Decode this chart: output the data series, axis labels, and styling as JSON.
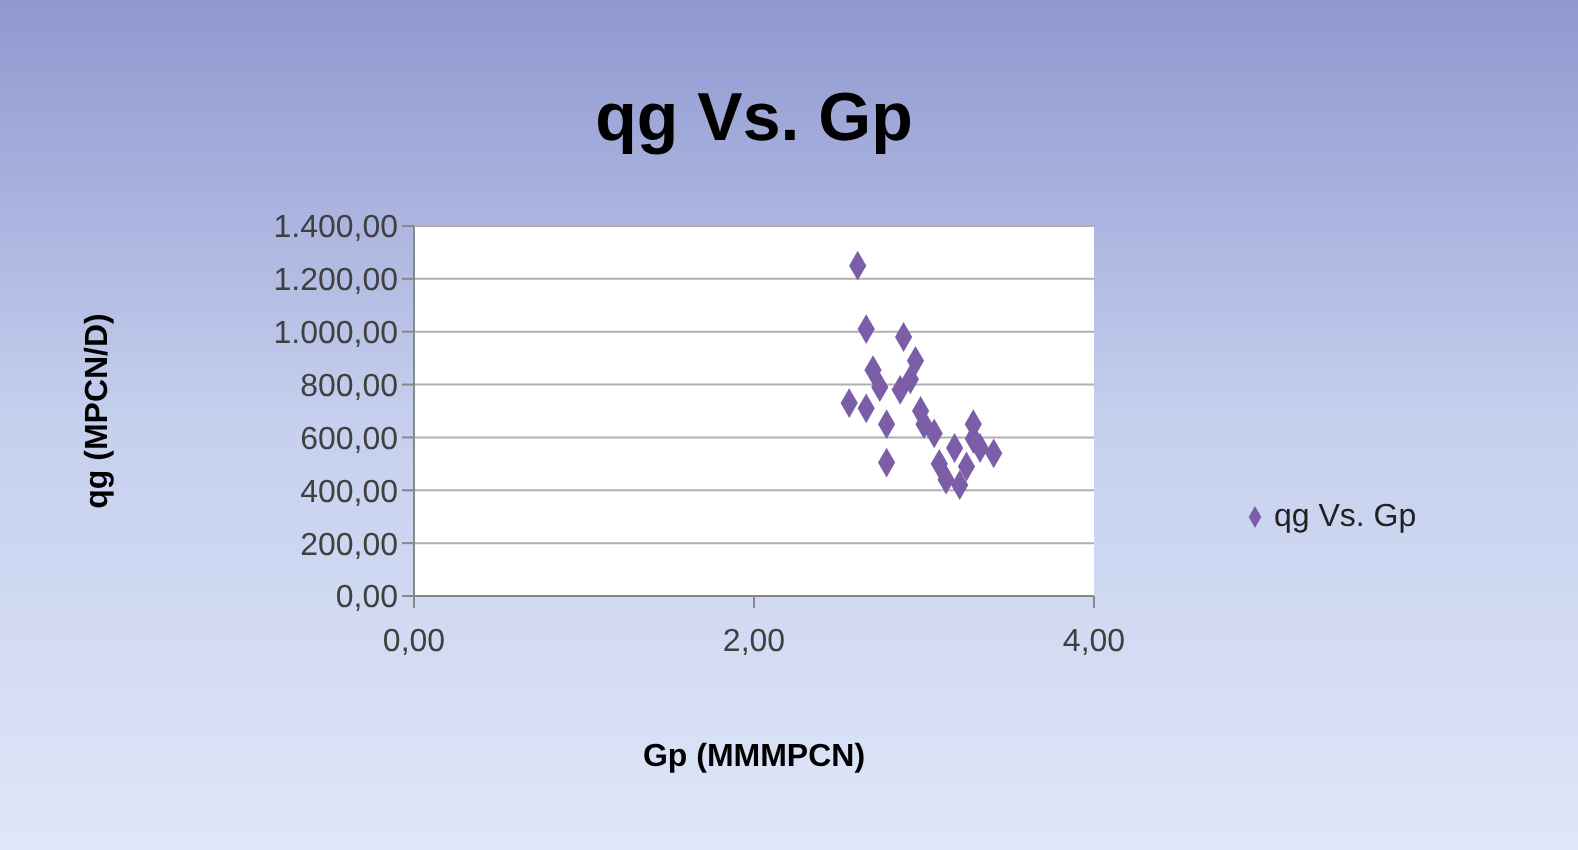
{
  "chart_data": {
    "type": "scatter",
    "title": "qg Vs. Gp",
    "xlabel": "Gp (MMMPCN)",
    "ylabel": "qg (MPCN/D)",
    "xlim": [
      0,
      4
    ],
    "xticks": [
      {
        "value": 0,
        "label": "0,00"
      },
      {
        "value": 2,
        "label": "2,00"
      },
      {
        "value": 4,
        "label": "4,00"
      }
    ],
    "ylim": [
      0,
      1400
    ],
    "yticks": [
      {
        "value": 0,
        "label": "0,00"
      },
      {
        "value": 200,
        "label": "200,00"
      },
      {
        "value": 400,
        "label": "400,00"
      },
      {
        "value": 600,
        "label": "600,00"
      },
      {
        "value": 800,
        "label": "800,00"
      },
      {
        "value": 1000,
        "label": "1.000,00"
      },
      {
        "value": 1200,
        "label": "1.200,00"
      },
      {
        "value": 1400,
        "label": "1.400,00"
      }
    ],
    "grid": "y",
    "legend": "right",
    "marker": "diamond",
    "series": [
      {
        "name": "qg Vs. Gp",
        "color": "#7b5ea7",
        "x": [
          2.61,
          2.66,
          2.88,
          2.7,
          2.95,
          2.86,
          2.56,
          2.66,
          2.78,
          2.98,
          3.06,
          2.78,
          3.29,
          3.18,
          3.33,
          3.41,
          3.13,
          3.21,
          3.25,
          3.09,
          2.92,
          2.74,
          3.29,
          3.0
        ],
        "values": [
          1250,
          1010,
          980,
          855,
          890,
          780,
          730,
          710,
          650,
          700,
          615,
          505,
          650,
          560,
          560,
          540,
          440,
          420,
          490,
          500,
          820,
          790,
          595,
          650
        ]
      }
    ]
  }
}
